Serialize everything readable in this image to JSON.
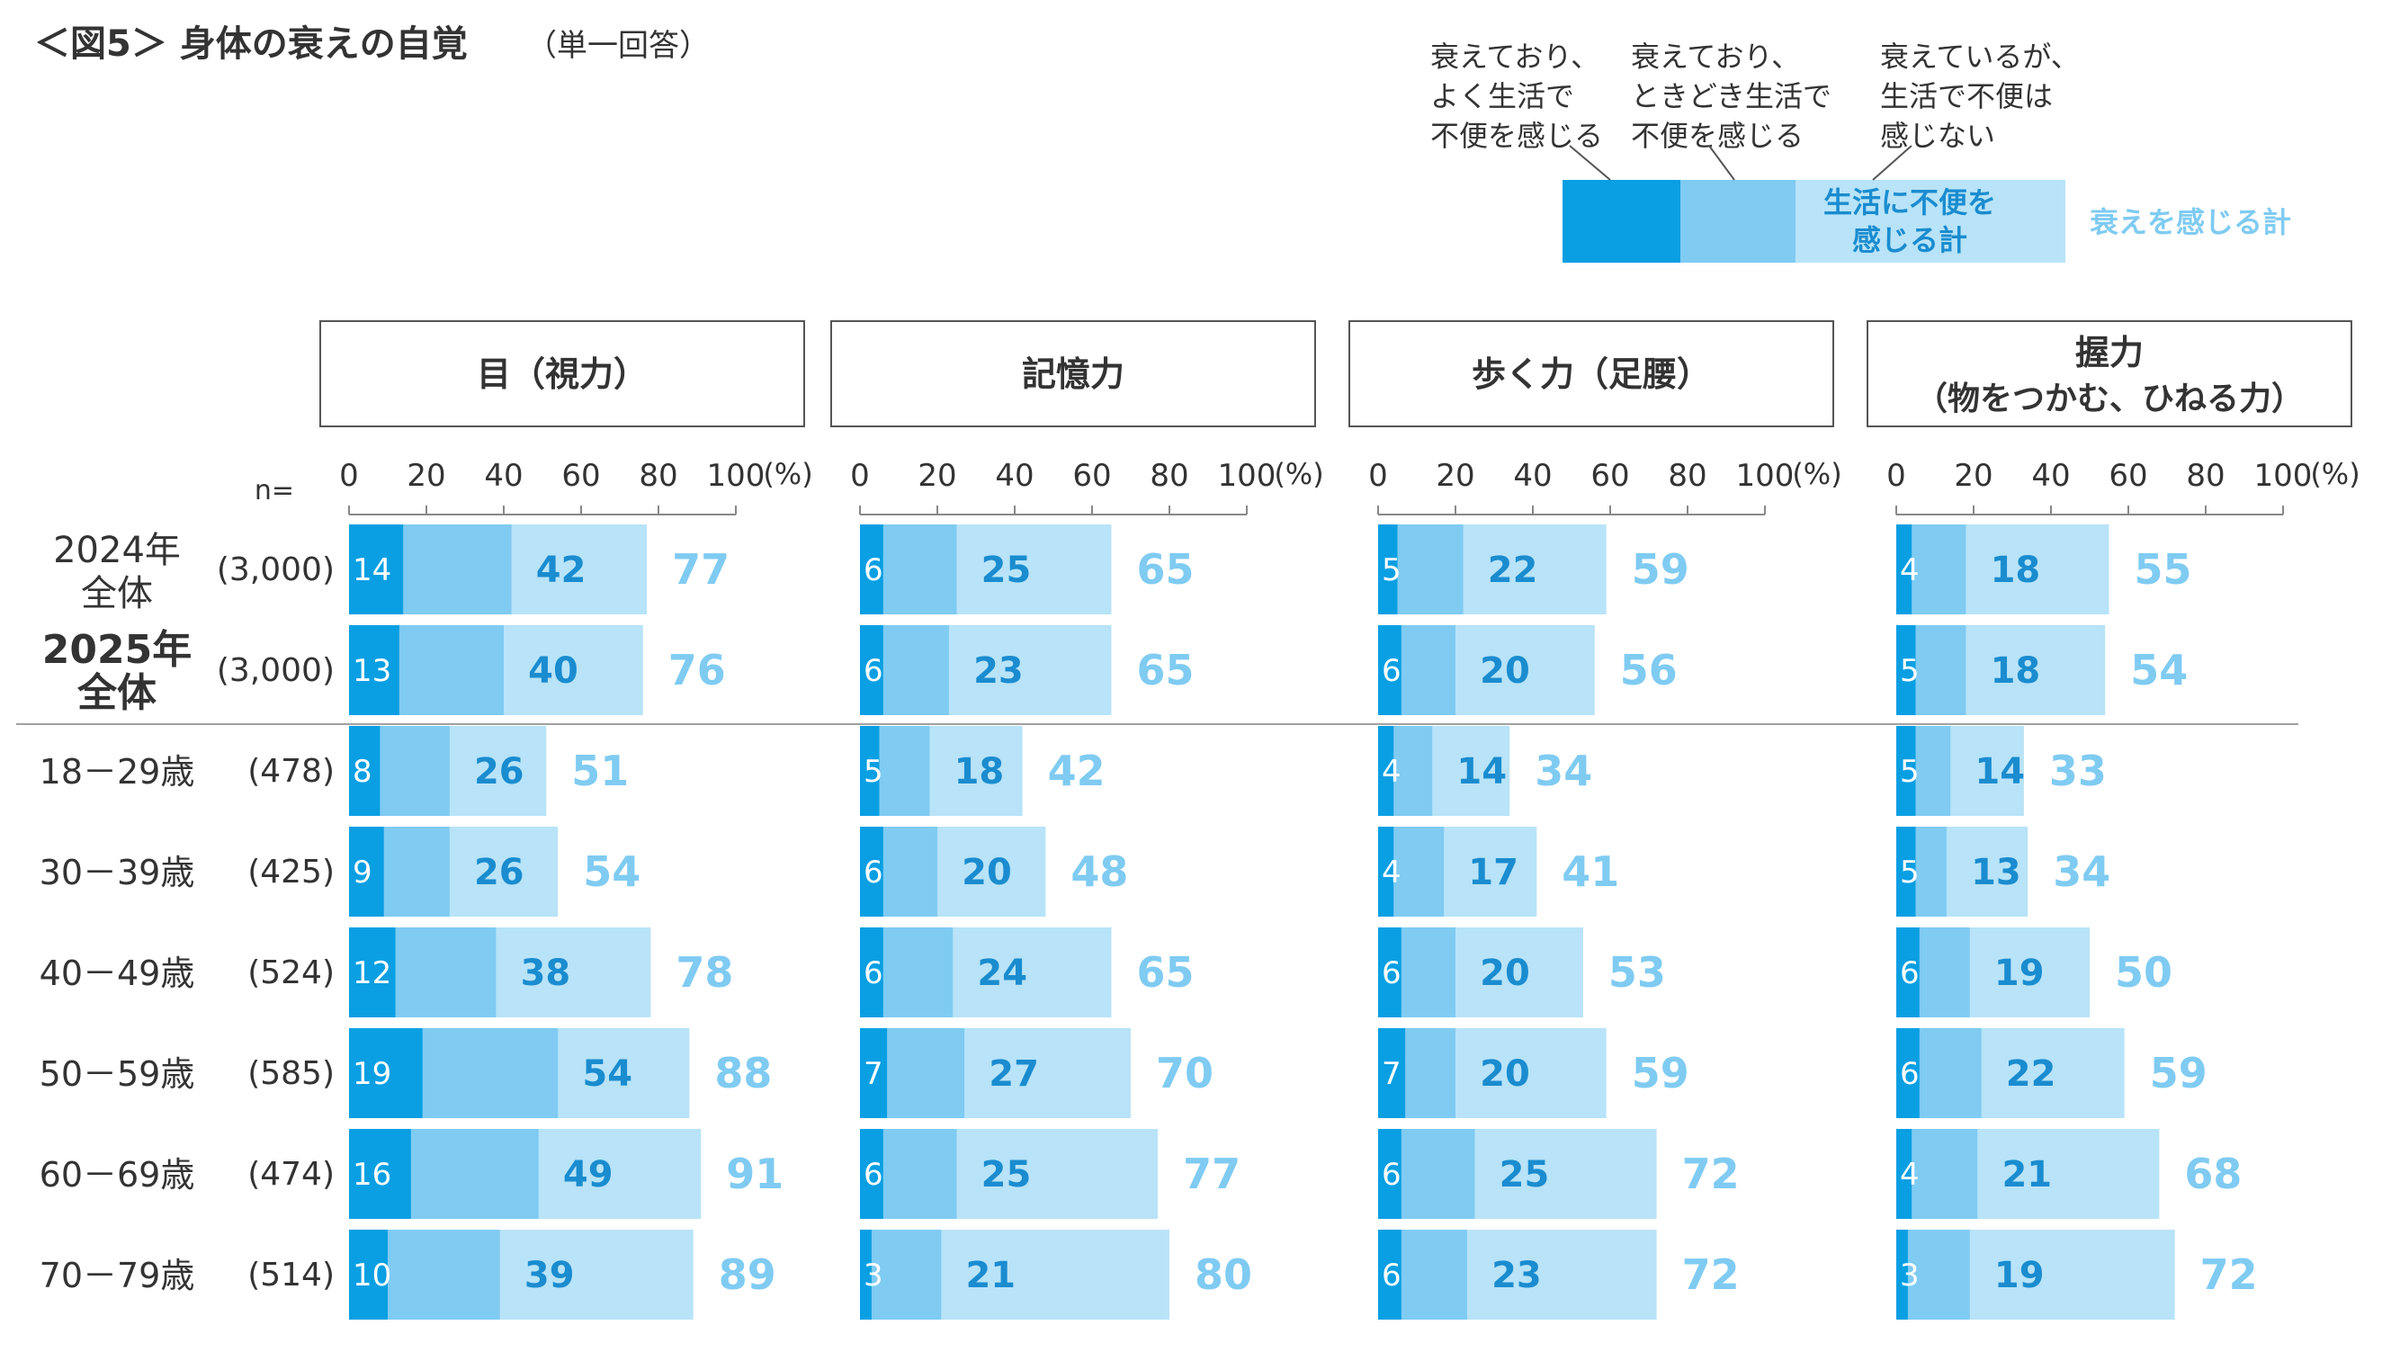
{
  "title": {
    "main": "＜図5＞ 身体の衰えの自覚",
    "sub": "（単一回答）"
  },
  "legend": {
    "often": [
      "衰えており、",
      "よく生活で",
      "不便を感じる"
    ],
    "sometimes": [
      "衰えており、",
      "ときどき生活で",
      "不便を感じる"
    ],
    "no_inconvenience": [
      "衰えているが、",
      "生活で不便は",
      "感じない"
    ],
    "inconvenience_total": [
      "生活に不便を",
      "感じる計"
    ],
    "decline_total": "衰えを感じる計"
  },
  "n_label": "n=",
  "colors": {
    "often": "#0a9fe3",
    "sometimes": "#7fcbf2",
    "no_inconvenience": "#b8e3f8",
    "inconvenience_label": "#1a8ccf",
    "total_label": "#7fcbf2",
    "small_label": "#ffffff",
    "text": "#333333",
    "divider": "#a0a0a0",
    "panel_border": "#555555"
  },
  "chart_data": {
    "type": "bar",
    "orientation": "horizontal",
    "stacked": true,
    "axis": {
      "ticks": [
        "0",
        "20",
        "40",
        "60",
        "80",
        "100"
      ],
      "unit": "(%)",
      "xlim": [
        0,
        100
      ]
    },
    "rows": [
      {
        "label": [
          "2024年",
          "全体"
        ],
        "n": "(3,000)",
        "bold": false
      },
      {
        "label": [
          "2025年",
          "全体"
        ],
        "n": "(3,000)",
        "bold": true
      },
      {
        "label": [
          "18－29歳"
        ],
        "n": "(478)",
        "bold": false
      },
      {
        "label": [
          "30－39歳"
        ],
        "n": "(425)",
        "bold": false
      },
      {
        "label": [
          "40－49歳"
        ],
        "n": "(524)",
        "bold": false
      },
      {
        "label": [
          "50－59歳"
        ],
        "n": "(585)",
        "bold": false
      },
      {
        "label": [
          "60－69歳"
        ],
        "n": "(474)",
        "bold": false
      },
      {
        "label": [
          "70－79歳"
        ],
        "n": "(514)",
        "bold": false
      }
    ],
    "panels": [
      {
        "title": [
          "目（視力）"
        ],
        "often": [
          14,
          13,
          8,
          9,
          12,
          19,
          16,
          10
        ],
        "inconvenience_total": [
          42,
          40,
          26,
          26,
          38,
          54,
          49,
          39
        ],
        "decline_total": [
          77,
          76,
          51,
          54,
          78,
          88,
          91,
          89
        ]
      },
      {
        "title": [
          "記憶力"
        ],
        "often": [
          6,
          6,
          5,
          6,
          6,
          7,
          6,
          3
        ],
        "inconvenience_total": [
          25,
          23,
          18,
          20,
          24,
          27,
          25,
          21
        ],
        "decline_total": [
          65,
          65,
          42,
          48,
          65,
          70,
          77,
          80
        ]
      },
      {
        "title": [
          "歩く力（足腰）"
        ],
        "often": [
          5,
          6,
          4,
          4,
          6,
          7,
          6,
          6
        ],
        "inconvenience_total": [
          22,
          20,
          14,
          17,
          20,
          20,
          25,
          23
        ],
        "decline_total": [
          59,
          56,
          34,
          41,
          53,
          59,
          72,
          72
        ]
      },
      {
        "title": [
          "握力",
          "（物をつかむ、ひねる力）"
        ],
        "often": [
          4,
          5,
          5,
          5,
          6,
          6,
          4,
          3
        ],
        "inconvenience_total": [
          18,
          18,
          14,
          13,
          19,
          22,
          21,
          19
        ],
        "decline_total": [
          55,
          54,
          33,
          34,
          50,
          59,
          68,
          72
        ]
      }
    ]
  }
}
